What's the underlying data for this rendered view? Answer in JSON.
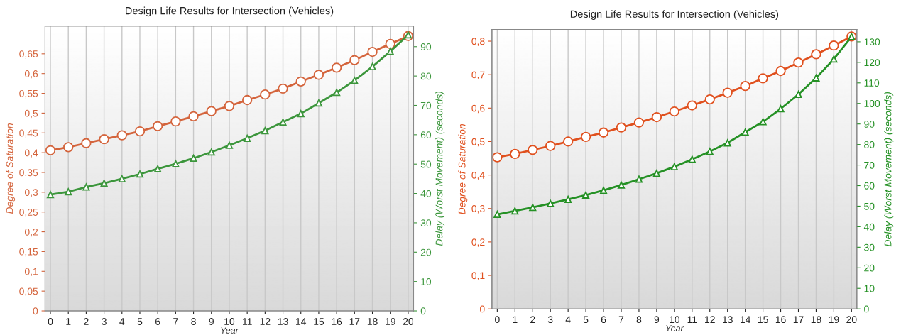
{
  "chart_data": [
    {
      "type": "line",
      "title": "Design Life Results for Intersection (Vehicles)",
      "xlabel": "Year",
      "ylabel": "Degree of Saturation",
      "y2label": "Delay (Worst Movement) (seconds)",
      "x": [
        0,
        1,
        2,
        3,
        4,
        5,
        6,
        7,
        8,
        9,
        10,
        11,
        12,
        13,
        14,
        15,
        16,
        17,
        18,
        19,
        20
      ],
      "xlim": [
        -0.3,
        20.3
      ],
      "xticks": [
        0,
        1,
        2,
        3,
        4,
        5,
        6,
        7,
        8,
        9,
        10,
        11,
        12,
        13,
        14,
        15,
        16,
        17,
        18,
        19,
        20
      ],
      "ylim": [
        0,
        0.72
      ],
      "yticks": [
        0,
        {
          "value": 0.05,
          "label": "0,05"
        },
        {
          "value": 0.1,
          "label": "0,1"
        },
        {
          "value": 0.15,
          "label": "0,15"
        },
        {
          "value": 0.2,
          "label": "0,2"
        },
        {
          "value": 0.25,
          "label": "0,25"
        },
        {
          "value": 0.3,
          "label": "0,3"
        },
        {
          "value": 0.35,
          "label": "0,35"
        },
        {
          "value": 0.4,
          "label": "0,4"
        },
        {
          "value": 0.45,
          "label": "0,45"
        },
        {
          "value": 0.5,
          "label": "0,5"
        },
        {
          "value": 0.55,
          "label": "0,55"
        },
        {
          "value": 0.6,
          "label": "0,6"
        },
        {
          "value": 0.65,
          "label": "0,65"
        }
      ],
      "y2lim": [
        0,
        97
      ],
      "y2ticks": [
        0,
        10,
        20,
        30,
        40,
        50,
        60,
        70,
        80,
        90
      ],
      "grid": "x",
      "series": [
        {
          "color": "#d4643c",
          "marker": "circle",
          "values": [
            0.406,
            0.414,
            0.424,
            0.434,
            0.444,
            0.454,
            0.467,
            0.479,
            0.492,
            0.505,
            0.518,
            0.533,
            0.547,
            0.562,
            0.58,
            0.597,
            0.615,
            0.634,
            0.655,
            0.675,
            0.695
          ]
        },
        {
          "color": "#3c963c",
          "marker": "triangle",
          "axis": "y2",
          "values": [
            39.6,
            40.6,
            42.2,
            43.5,
            45.0,
            46.6,
            48.4,
            50.1,
            52.0,
            54.1,
            56.4,
            58.8,
            61.4,
            64.3,
            67.2,
            70.8,
            74.4,
            78.5,
            83.2,
            88.4,
            94.0
          ]
        }
      ]
    },
    {
      "type": "line",
      "title": "Design Life Results for Intersection (Vehicles)",
      "xlabel": "Year",
      "ylabel": "Degree of Saturation",
      "y2label": "Delay (Worst Movement) (seconds)",
      "x": [
        0,
        1,
        2,
        3,
        4,
        5,
        6,
        7,
        8,
        9,
        10,
        11,
        12,
        13,
        14,
        15,
        16,
        17,
        18,
        19,
        20
      ],
      "xlim": [
        -0.3,
        20.3
      ],
      "xticks": [
        0,
        1,
        2,
        3,
        4,
        5,
        6,
        7,
        8,
        9,
        10,
        11,
        12,
        13,
        14,
        15,
        16,
        17,
        18,
        19,
        20
      ],
      "ylim": [
        0,
        0.835
      ],
      "yticks": [
        0,
        {
          "value": 0.1,
          "label": "0,1"
        },
        {
          "value": 0.2,
          "label": "0,2"
        },
        {
          "value": 0.3,
          "label": "0,3"
        },
        {
          "value": 0.4,
          "label": "0,4"
        },
        {
          "value": 0.5,
          "label": "0,5"
        },
        {
          "value": 0.6,
          "label": "0,6"
        },
        {
          "value": 0.7,
          "label": "0,7"
        },
        {
          "value": 0.8,
          "label": "0,8"
        }
      ],
      "y2lim": [
        0,
        136
      ],
      "y2ticks": [
        0,
        10,
        20,
        30,
        40,
        50,
        60,
        70,
        80,
        90,
        100,
        110,
        120,
        130
      ],
      "grid": "x",
      "series": [
        {
          "color": "#e0501e",
          "marker": "circle",
          "values": [
            0.453,
            0.463,
            0.475,
            0.487,
            0.5,
            0.514,
            0.527,
            0.542,
            0.557,
            0.573,
            0.59,
            0.608,
            0.626,
            0.646,
            0.666,
            0.689,
            0.711,
            0.736,
            0.761,
            0.787,
            0.814
          ]
        },
        {
          "color": "#259125",
          "marker": "triangle",
          "axis": "y2",
          "values": [
            46.0,
            47.7,
            49.4,
            51.3,
            53.3,
            55.4,
            57.7,
            60.3,
            63.1,
            66.0,
            69.2,
            72.8,
            76.6,
            80.8,
            86.0,
            91.1,
            97.4,
            104.4,
            112.4,
            121.6,
            132.5
          ]
        }
      ]
    }
  ]
}
